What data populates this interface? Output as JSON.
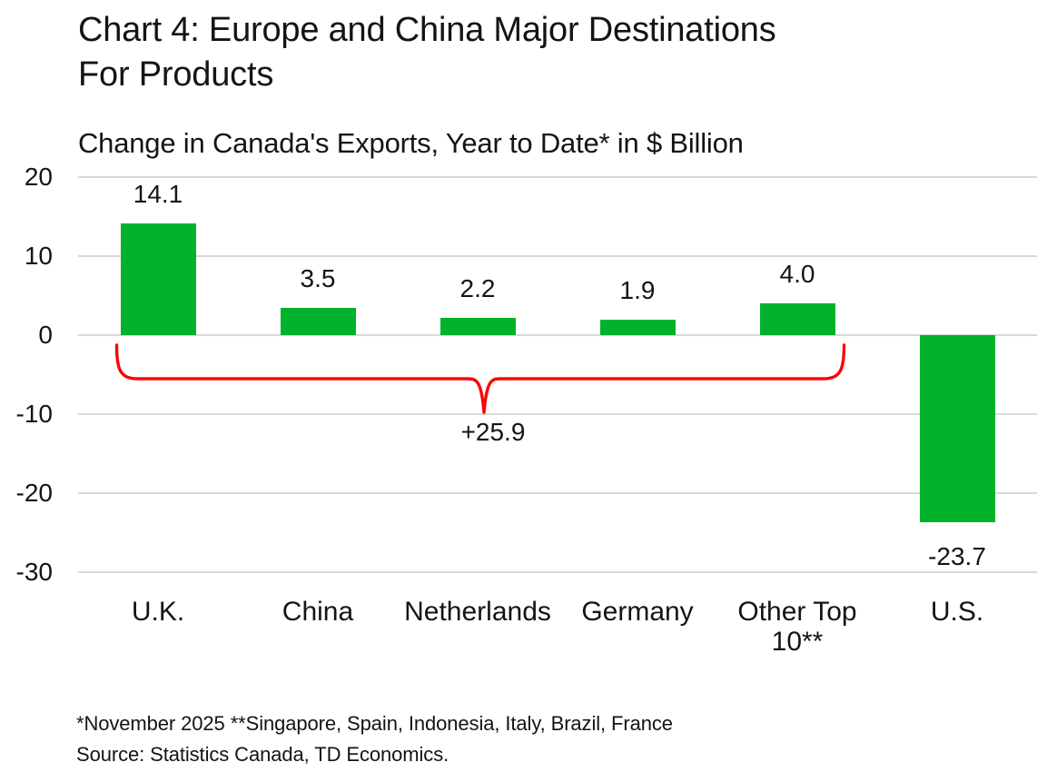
{
  "header": {
    "title_line1": "Chart 4: Europe and China Major Destinations",
    "title_line2": "For Products",
    "subtitle": "Change in Canada's Exports, Year to Date* in $ Billion"
  },
  "chart_data": {
    "type": "bar",
    "title": "Chart 4: Europe and China Major Destinations For Products",
    "subtitle": "Change in Canada's Exports, Year to Date* in $ Billion",
    "categories": [
      "U.K.",
      "China",
      "Netherlands",
      "Germany",
      "Other Top 10**",
      "U.S."
    ],
    "values": [
      14.1,
      3.5,
      2.2,
      1.9,
      4.0,
      -23.7
    ],
    "value_labels": [
      "14.1",
      "3.5",
      "2.2",
      "1.9",
      "4.0",
      "-23.7"
    ],
    "ylim": [
      -30,
      20
    ],
    "yticks": [
      20,
      10,
      0,
      -10,
      -20,
      -30
    ],
    "grid": "horizontal",
    "legend": "none",
    "bar_color": "#00b22c",
    "annotation": {
      "label": "+25.9",
      "meaning": "sum of first five bars",
      "from_category": "U.K.",
      "to_category": "Other Top 10**",
      "shape": "brace",
      "color": "#fb0505"
    }
  },
  "footnotes": {
    "note": "*November 2025 **Singapore, Spain, Indonesia, Italy, Brazil, France",
    "source": "Source: Statistics Canada, TD Economics."
  },
  "colors": {
    "bar_green": "#00b22c",
    "brace_red": "#fb0505",
    "gridline": "#d8d8d8",
    "text": "#141414",
    "background": "#ffffff"
  }
}
